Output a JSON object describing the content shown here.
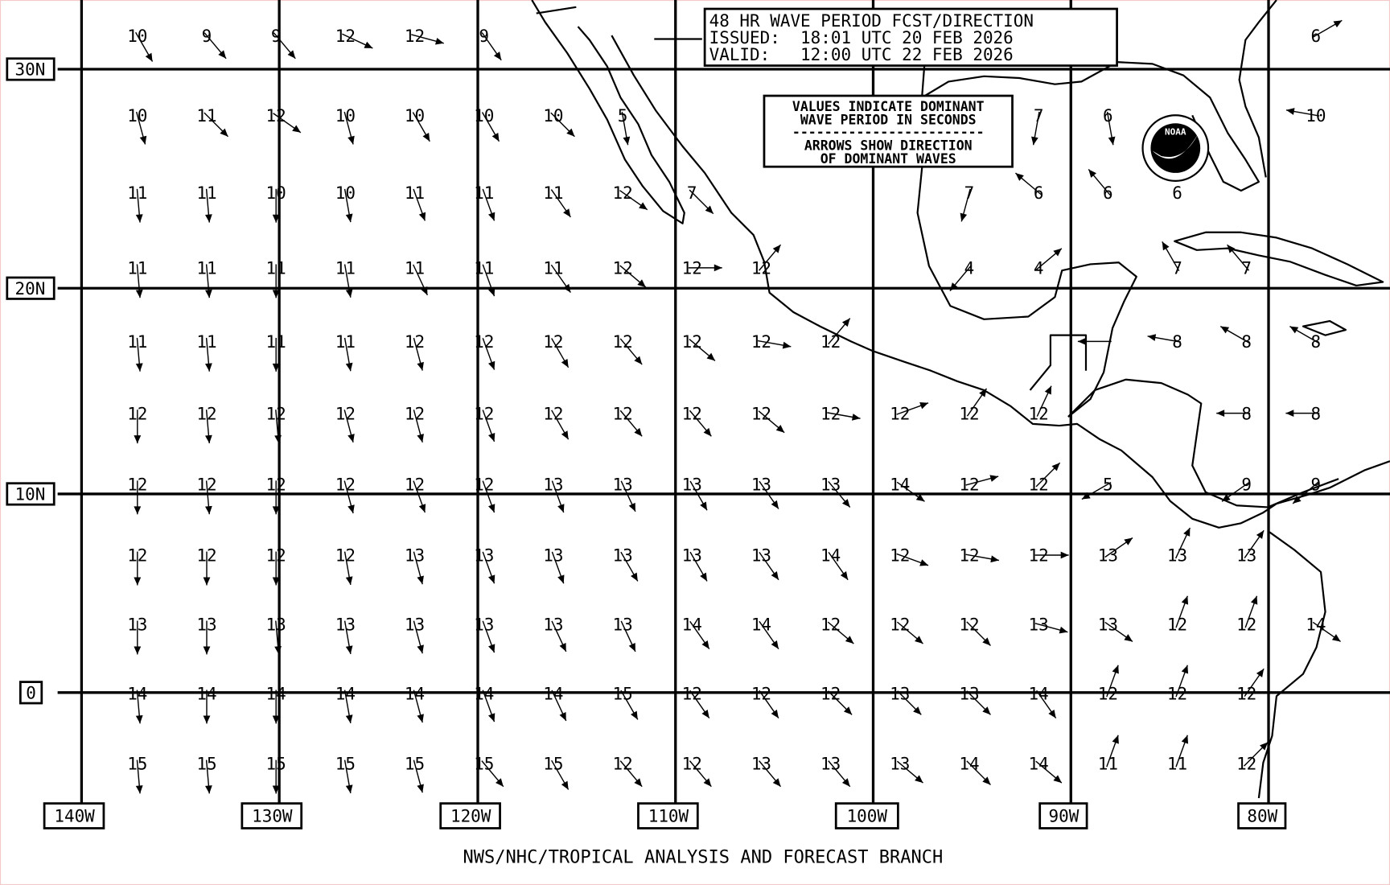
{
  "title_box": {
    "line1": "48 HR WAVE PERIOD FCST/DIRECTION",
    "line2": "ISSUED:  18:01 UTC 20 FEB 2026",
    "line3": "VALID:   12:00 UTC 22 FEB 2026"
  },
  "legend_box": {
    "line1": "VALUES INDICATE DOMINANT",
    "line2": "WAVE PERIOD IN SECONDS",
    "separator": "------------------------",
    "line3": "ARROWS SHOW DIRECTION",
    "line4": "OF DOMINANT WAVES"
  },
  "logo": {
    "text": "NOAA"
  },
  "lat_labels": [
    "30N",
    "20N",
    "10N",
    "0"
  ],
  "lon_labels": [
    "140W",
    "130W",
    "120W",
    "110W",
    "100W",
    "90W",
    "80W"
  ],
  "footer": "NWS/NHC/TROPICAL ANALYSIS AND FORECAST BRANCH",
  "arrow_direction_units": "degrees toward, clockwise from north",
  "wave_grid": [
    [
      [
        "10",
        150
      ],
      [
        "9",
        140
      ],
      [
        "9",
        140
      ],
      [
        "12",
        115
      ],
      [
        "12",
        105
      ],
      [
        "9",
        145
      ],
      null,
      null,
      null,
      null,
      null,
      null,
      null,
      null,
      null,
      null,
      null,
      [
        "6",
        60
      ]
    ],
    [
      [
        "10",
        165
      ],
      [
        "11",
        135
      ],
      [
        "12",
        125
      ],
      [
        "10",
        165
      ],
      [
        "10",
        150
      ],
      [
        "10",
        150
      ],
      [
        "10",
        135
      ],
      [
        "5",
        170
      ],
      null,
      null,
      null,
      null,
      null,
      [
        "7",
        190
      ],
      [
        "6",
        170
      ],
      null,
      null,
      [
        "10",
        280
      ]
    ],
    [
      [
        "11",
        175
      ],
      [
        "11",
        175
      ],
      [
        "10",
        180
      ],
      [
        "10",
        170
      ],
      [
        "11",
        160
      ],
      [
        "11",
        160
      ],
      [
        "11",
        145
      ],
      [
        "12",
        125
      ],
      [
        "7",
        135
      ],
      null,
      null,
      null,
      [
        "7",
        195
      ],
      [
        "6",
        310
      ],
      [
        "6",
        320
      ],
      [
        "6",
        null
      ],
      null,
      null
    ],
    [
      [
        "11",
        175
      ],
      [
        "11",
        175
      ],
      [
        "11",
        180
      ],
      [
        "11",
        170
      ],
      [
        "11",
        155
      ],
      [
        "11",
        160
      ],
      [
        "11",
        145
      ],
      [
        "12",
        130
      ],
      [
        "12",
        90
      ],
      [
        "12",
        40
      ],
      null,
      null,
      [
        "4",
        220
      ],
      [
        "4",
        50
      ],
      null,
      [
        "7",
        330
      ],
      [
        "7",
        320
      ],
      null
    ],
    [
      [
        "11",
        175
      ],
      [
        "11",
        175
      ],
      [
        "11",
        180
      ],
      [
        "11",
        170
      ],
      [
        "12",
        165
      ],
      [
        "12",
        160
      ],
      [
        "12",
        150
      ],
      [
        "12",
        140
      ],
      [
        "12",
        130
      ],
      [
        "12",
        100
      ],
      [
        "12",
        40
      ],
      null,
      null,
      null,
      [
        "",
        270
      ],
      [
        "8",
        280
      ],
      [
        "8",
        300
      ],
      [
        "8",
        300
      ]
    ],
    [
      [
        "12",
        180
      ],
      [
        "12",
        175
      ],
      [
        "12",
        175
      ],
      [
        "12",
        165
      ],
      [
        "12",
        165
      ],
      [
        "12",
        160
      ],
      [
        "12",
        150
      ],
      [
        "12",
        140
      ],
      [
        "12",
        140
      ],
      [
        "12",
        130
      ],
      [
        "12",
        100
      ],
      [
        "12",
        70
      ],
      [
        "12",
        35
      ],
      [
        "12",
        25
      ],
      null,
      null,
      [
        "8",
        270
      ],
      [
        "8",
        270
      ]
    ],
    [
      [
        "12",
        180
      ],
      [
        "12",
        175
      ],
      [
        "12",
        180
      ],
      [
        "12",
        165
      ],
      [
        "12",
        160
      ],
      [
        "12",
        160
      ],
      [
        "13",
        160
      ],
      [
        "13",
        155
      ],
      [
        "13",
        150
      ],
      [
        "13",
        145
      ],
      [
        "13",
        140
      ],
      [
        "14",
        125
      ],
      [
        "12",
        75
      ],
      [
        "12",
        45
      ],
      [
        "5",
        240
      ],
      null,
      [
        "9",
        235
      ],
      [
        "9",
        230
      ]
    ],
    [
      [
        "12",
        180
      ],
      [
        "12",
        180
      ],
      [
        "12",
        180
      ],
      [
        "12",
        170
      ],
      [
        "13",
        165
      ],
      [
        "13",
        160
      ],
      [
        "13",
        160
      ],
      [
        "13",
        150
      ],
      [
        "13",
        150
      ],
      [
        "13",
        145
      ],
      [
        "14",
        145
      ],
      [
        "12",
        110
      ],
      [
        "12",
        100
      ],
      [
        "12",
        90
      ],
      [
        "13",
        55
      ],
      [
        "13",
        25
      ],
      [
        "13",
        35
      ],
      null
    ],
    [
      [
        "13",
        180
      ],
      [
        "13",
        180
      ],
      [
        "13",
        175
      ],
      [
        "13",
        170
      ],
      [
        "13",
        165
      ],
      [
        "13",
        160
      ],
      [
        "13",
        155
      ],
      [
        "13",
        155
      ],
      [
        "14",
        145
      ],
      [
        "14",
        145
      ],
      [
        "12",
        130
      ],
      [
        "12",
        130
      ],
      [
        "12",
        135
      ],
      [
        "13",
        105
      ],
      [
        "13",
        125
      ],
      [
        "12",
        20
      ],
      [
        "12",
        20
      ],
      [
        "14",
        125
      ]
    ],
    [
      [
        "14",
        175
      ],
      [
        "14",
        180
      ],
      [
        "14",
        180
      ],
      [
        "14",
        170
      ],
      [
        "14",
        165
      ],
      [
        "14",
        160
      ],
      [
        "14",
        155
      ],
      [
        "15",
        150
      ],
      [
        "12",
        145
      ],
      [
        "12",
        145
      ],
      [
        "12",
        135
      ],
      [
        "13",
        135
      ],
      [
        "13",
        135
      ],
      [
        "14",
        145
      ],
      [
        "12",
        20
      ],
      [
        "12",
        20
      ],
      [
        "12",
        35
      ],
      null
    ],
    [
      [
        "15",
        175
      ],
      [
        "15",
        175
      ],
      [
        "15",
        180
      ],
      [
        "15",
        170
      ],
      [
        "15",
        165
      ],
      [
        "15",
        140
      ],
      [
        "15",
        150
      ],
      [
        "12",
        140
      ],
      [
        "12",
        140
      ],
      [
        "13",
        140
      ],
      [
        "13",
        140
      ],
      [
        "13",
        130
      ],
      [
        "14",
        135
      ],
      [
        "14",
        130
      ],
      [
        "11",
        20
      ],
      [
        "11",
        20
      ],
      [
        "12",
        45
      ],
      null
    ]
  ]
}
